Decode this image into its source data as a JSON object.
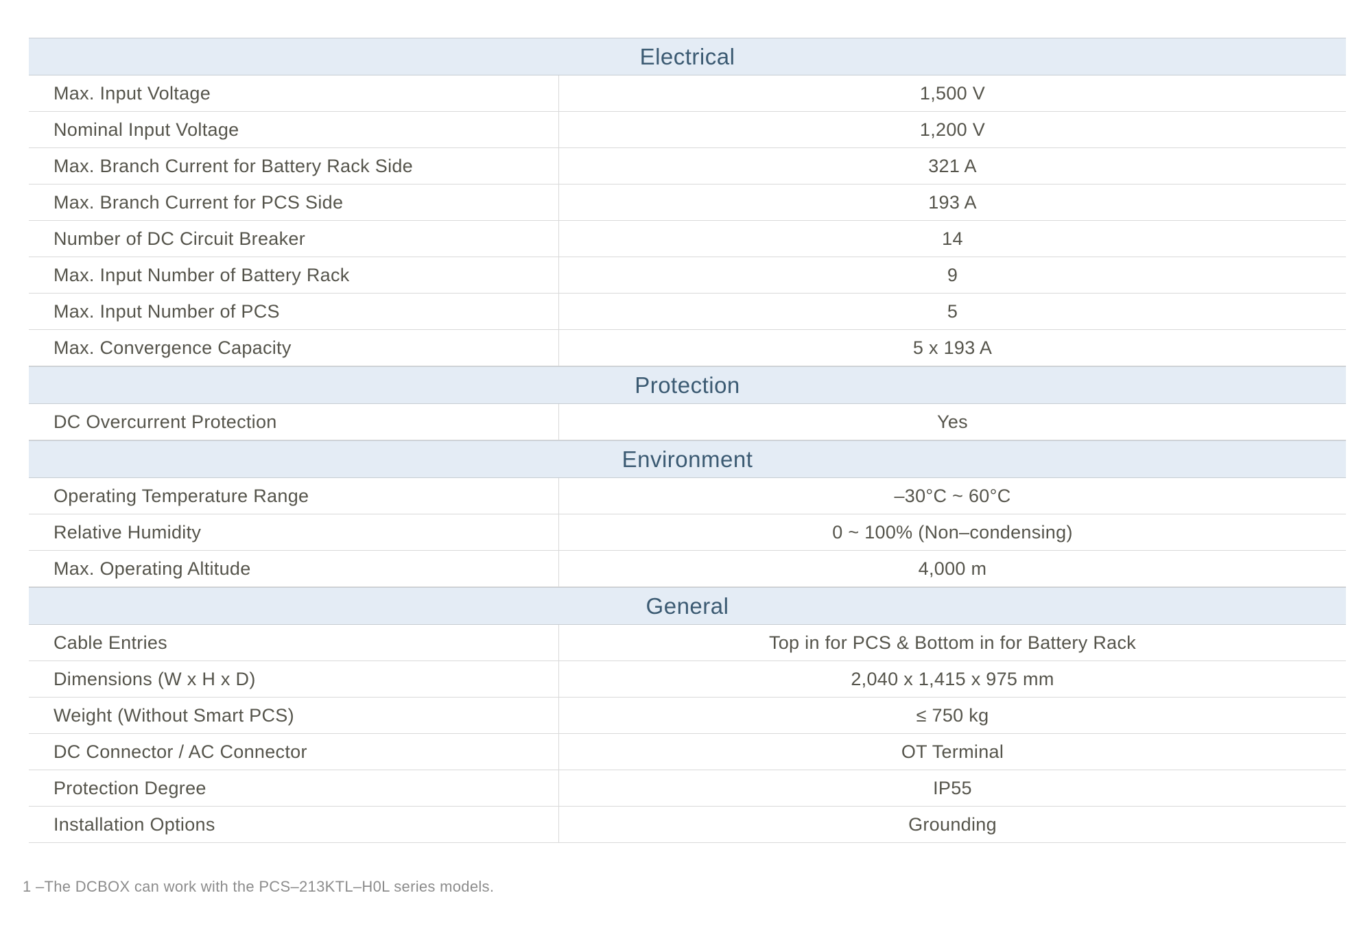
{
  "table": {
    "sections": [
      {
        "title": "Electrical",
        "rows": [
          {
            "label": "Max. Input Voltage",
            "value": "1,500 V"
          },
          {
            "label": "Nominal Input Voltage",
            "value": "1,200 V"
          },
          {
            "label": "Max. Branch Current for Battery Rack Side",
            "value": "321 A"
          },
          {
            "label": "Max. Branch Current for PCS Side",
            "value": "193 A"
          },
          {
            "label": "Number of DC Circuit Breaker",
            "value": "14"
          },
          {
            "label": "Max. Input Number of Battery Rack",
            "value": "9"
          },
          {
            "label": "Max. Input Number of PCS",
            "value": "5"
          },
          {
            "label": "Max. Convergence Capacity",
            "value": "5 x 193 A"
          }
        ]
      },
      {
        "title": "Protection",
        "rows": [
          {
            "label": "DC Overcurrent Protection",
            "value": "Yes"
          }
        ]
      },
      {
        "title": "Environment",
        "rows": [
          {
            "label": "Operating Temperature Range",
            "value": "–30°C ~ 60°C"
          },
          {
            "label": "Relative Humidity",
            "value": "0 ~ 100% (Non–condensing)"
          },
          {
            "label": "Max. Operating Altitude",
            "value": "4,000 m"
          }
        ]
      },
      {
        "title": "General",
        "rows": [
          {
            "label": "Cable Entries",
            "value": "Top in for PCS & Bottom in for Battery Rack"
          },
          {
            "label": "Dimensions (W x H x D)",
            "value": "2,040 x 1,415 x 975 mm"
          },
          {
            "label": "Weight (Without Smart PCS)",
            "value": "≤ 750 kg"
          },
          {
            "label": "DC Connector / AC Connector",
            "value": "OT Terminal"
          },
          {
            "label": "Protection Degree",
            "value": "IP55"
          },
          {
            "label": "Installation Options",
            "value": "Grounding"
          }
        ]
      }
    ]
  },
  "footnote": "1 –The DCBOX can work with the PCS–213KTL–H0L series models.",
  "colors": {
    "section_header_bg": "#e4ecf5",
    "section_header_text": "#3b5a72",
    "cell_text": "#55544b",
    "row_border": "#d9d9d9",
    "band_border": "#c6ccd2",
    "footnote_text": "#8c8c8c"
  }
}
